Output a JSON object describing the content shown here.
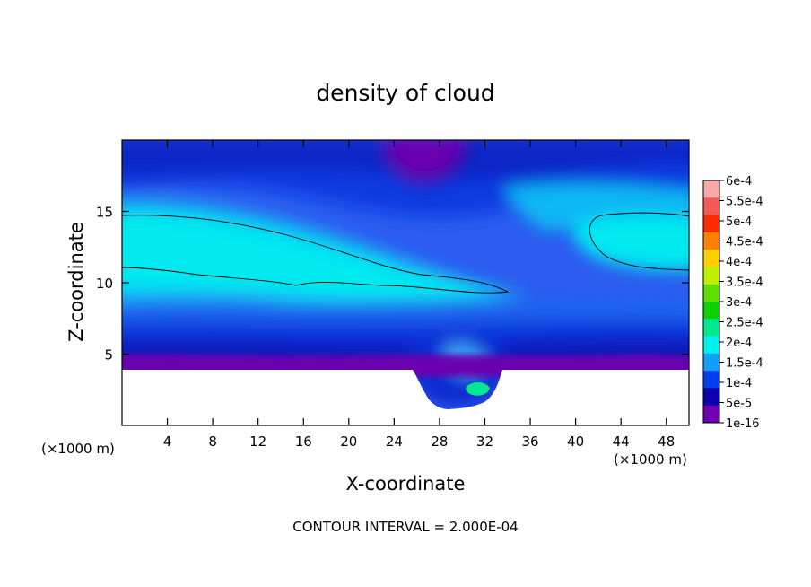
{
  "chart_data": {
    "type": "heatmap",
    "title": "density of cloud",
    "xlabel": "X-coordinate",
    "ylabel": "Z-coordinate",
    "x_unit_label": "(×1000 m)",
    "x_unit_label_right": "(×1000 m)",
    "xlim": [
      0,
      50
    ],
    "ylim": [
      0,
      20
    ],
    "x_ticks": [
      4,
      8,
      12,
      16,
      20,
      24,
      28,
      32,
      36,
      40,
      44,
      48
    ],
    "y_ticks": [
      5,
      10,
      15
    ],
    "footer": "CONTOUR INTERVAL = 2.000E-04",
    "colorbar": {
      "labels": [
        "6e-4",
        "5.5e-4",
        "5e-4",
        "4.5e-4",
        "4e-4",
        "3.5e-4",
        "3e-4",
        "2.5e-4",
        "2e-4",
        "1.5e-4",
        "1e-4",
        "5e-5",
        "1e-16"
      ],
      "colors": [
        "#f9a8a8",
        "#f35a55",
        "#ff2a00",
        "#ff8000",
        "#ffd000",
        "#c0f000",
        "#60e000",
        "#10d000",
        "#00e890",
        "#00f0f0",
        "#10a0f8",
        "#0040f0",
        "#1000b0",
        "#7000b0"
      ]
    },
    "contour_levels": [
      0.0002
    ],
    "grid": false
  }
}
